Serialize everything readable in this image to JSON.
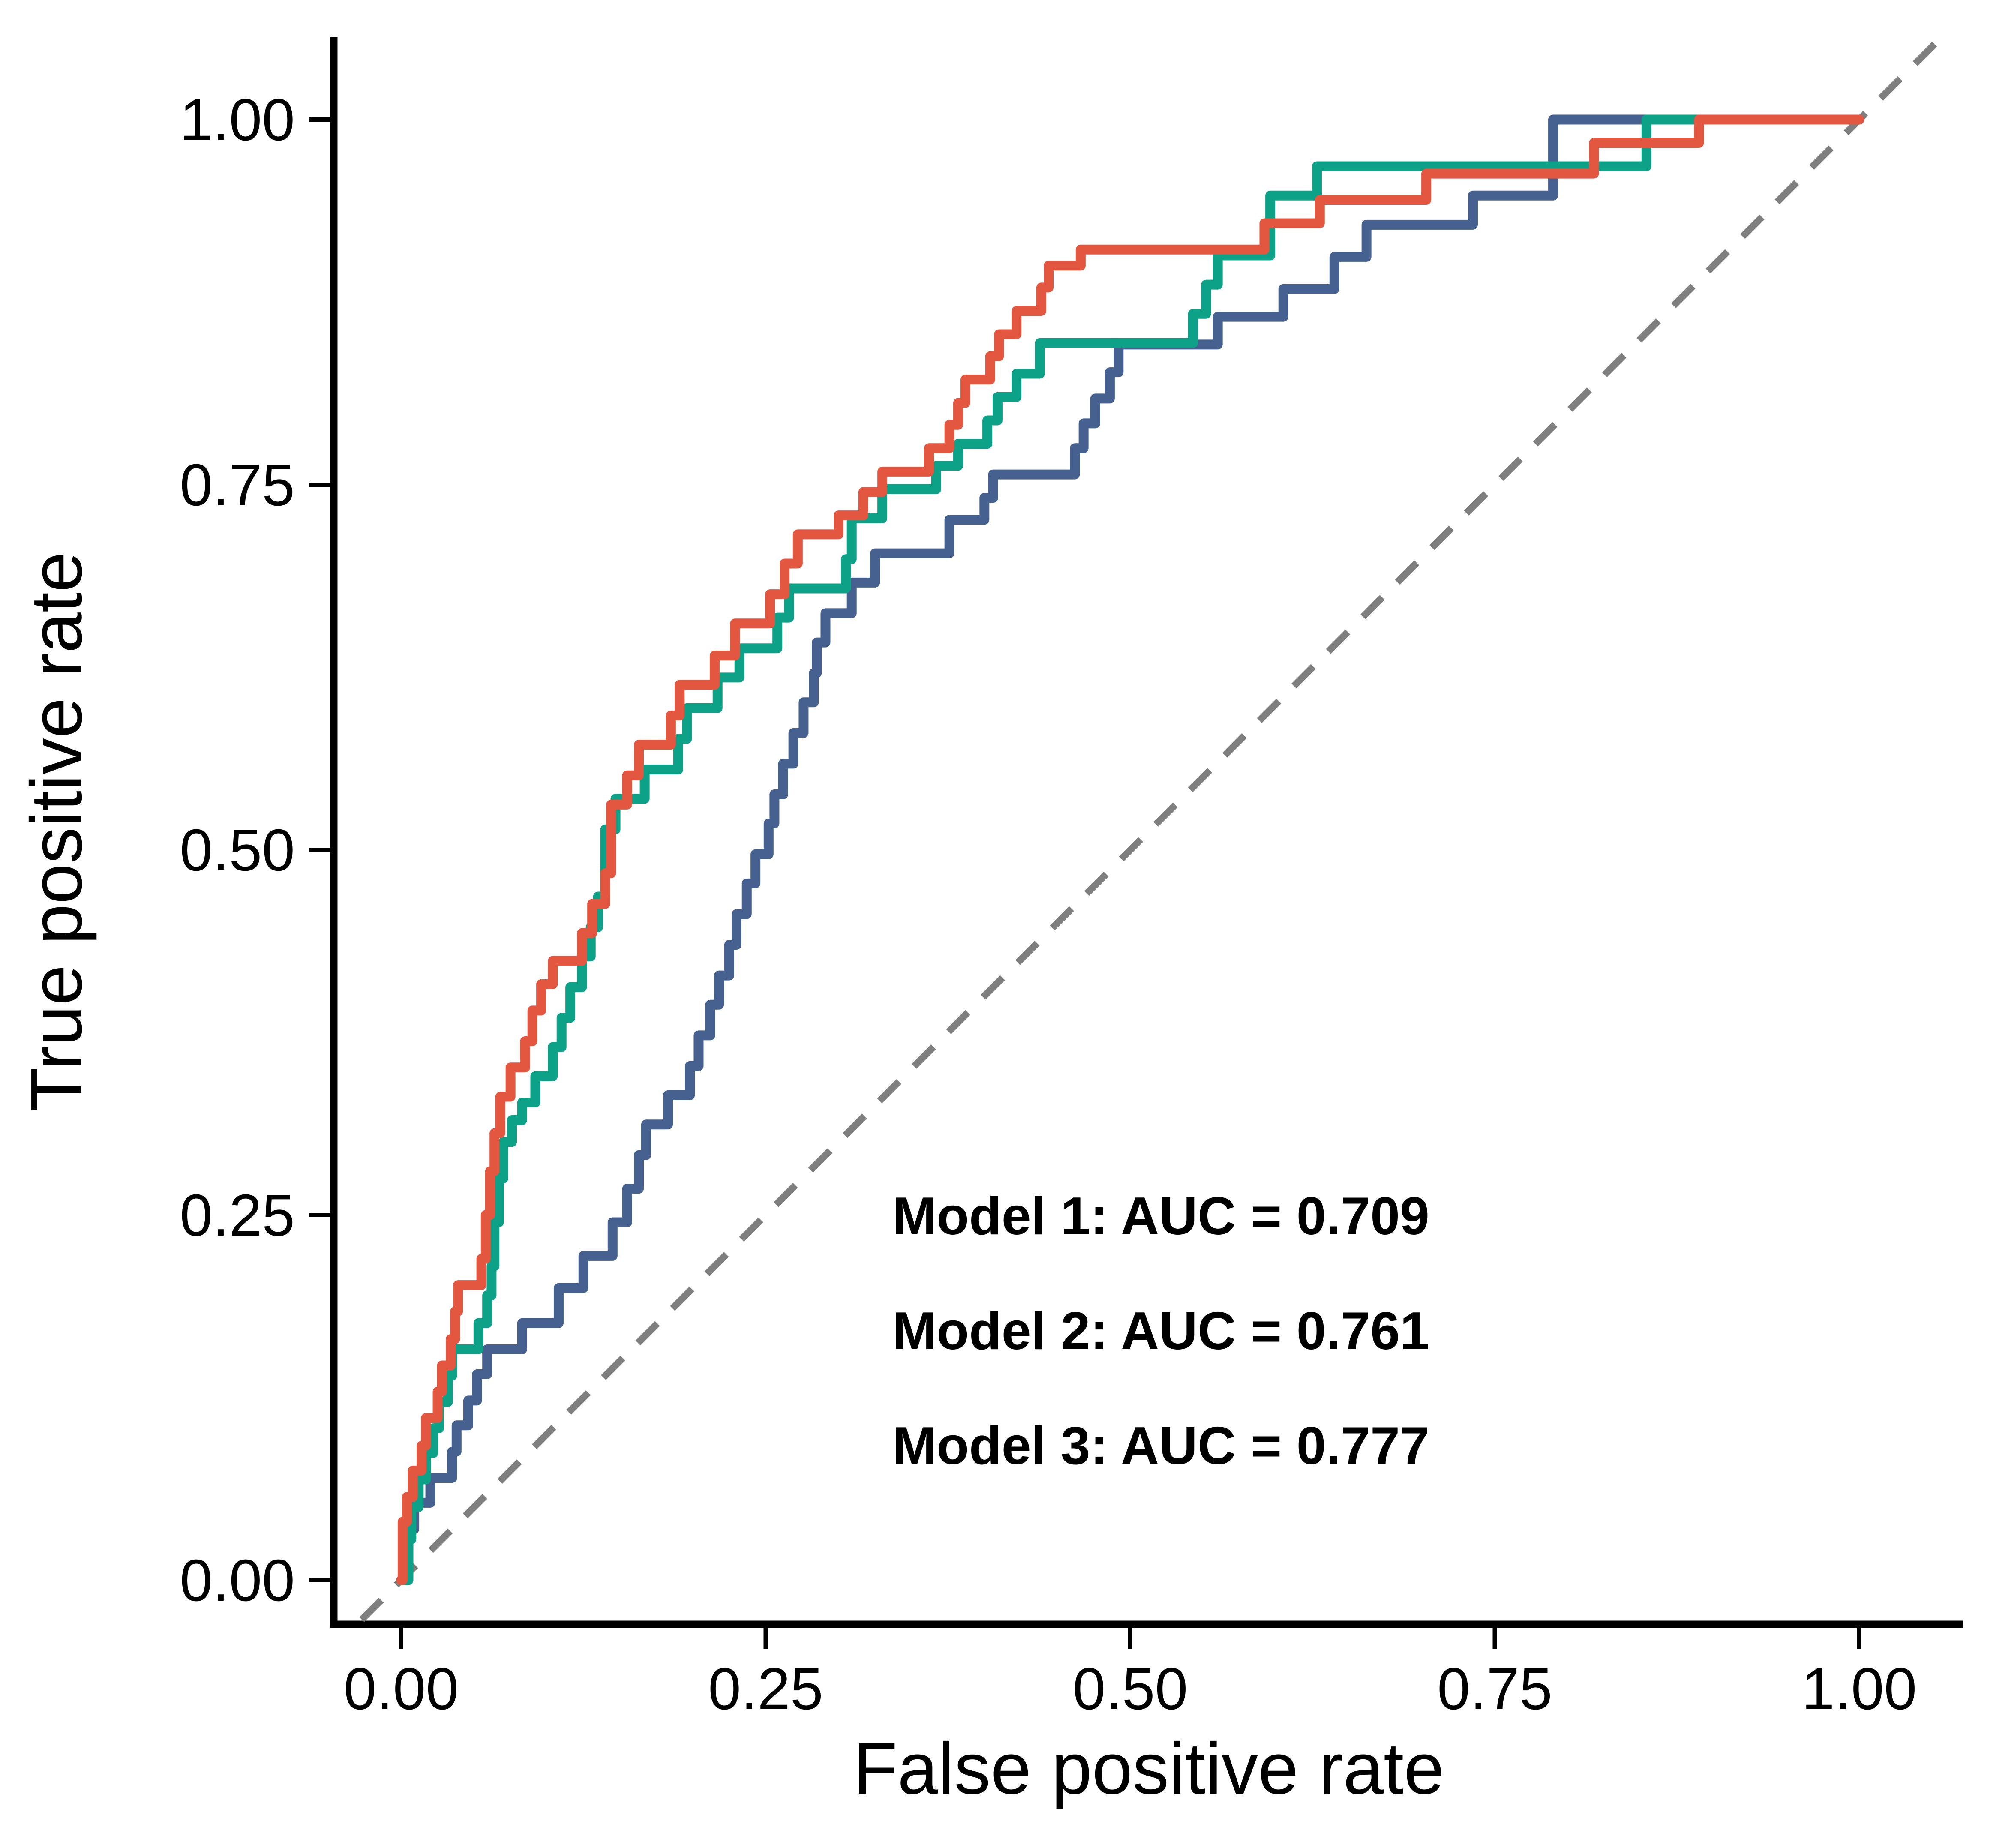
{
  "chart_data": {
    "type": "line",
    "subtype": "roc-step-curves",
    "title": "",
    "xlabel": "False positive rate",
    "ylabel": "True positive rate",
    "xlim": [
      0,
      1
    ],
    "ylim": [
      0,
      1
    ],
    "grid": "off",
    "legend_position": "inside-lower-right-annotations",
    "x_ticks": {
      "values": [
        0,
        0.25,
        0.5,
        0.75,
        1
      ],
      "labels": [
        "0.00",
        "0.25",
        "0.50",
        "0.75",
        "1.00"
      ]
    },
    "y_ticks": {
      "values": [
        0,
        0.25,
        0.5,
        0.75,
        1
      ],
      "labels": [
        "0.00",
        "0.25",
        "0.50",
        "0.75",
        "1.00"
      ]
    },
    "reference_line": {
      "name": "chance-diagonal",
      "from": [
        0,
        0
      ],
      "to": [
        1,
        1
      ],
      "style": "dashed",
      "color": "#7f7f7f"
    },
    "series": [
      {
        "name": "Model 1",
        "auc": 0.709,
        "color": "#46618F",
        "points": [
          [
            0.0,
            0.0
          ],
          [
            0.003,
            0.035
          ],
          [
            0.009,
            0.053
          ],
          [
            0.02,
            0.07
          ],
          [
            0.035,
            0.088
          ],
          [
            0.038,
            0.106
          ],
          [
            0.046,
            0.123
          ],
          [
            0.052,
            0.141
          ],
          [
            0.059,
            0.158
          ],
          [
            0.083,
            0.176
          ],
          [
            0.108,
            0.2
          ],
          [
            0.125,
            0.222
          ],
          [
            0.145,
            0.245
          ],
          [
            0.155,
            0.268
          ],
          [
            0.163,
            0.291
          ],
          [
            0.168,
            0.312
          ],
          [
            0.183,
            0.332
          ],
          [
            0.198,
            0.352
          ],
          [
            0.204,
            0.373
          ],
          [
            0.212,
            0.394
          ],
          [
            0.218,
            0.414
          ],
          [
            0.225,
            0.435
          ],
          [
            0.23,
            0.456
          ],
          [
            0.237,
            0.477
          ],
          [
            0.243,
            0.497
          ],
          [
            0.252,
            0.518
          ],
          [
            0.256,
            0.538
          ],
          [
            0.262,
            0.559
          ],
          [
            0.269,
            0.58
          ],
          [
            0.276,
            0.601
          ],
          [
            0.283,
            0.621
          ],
          [
            0.285,
            0.642
          ],
          [
            0.291,
            0.662
          ],
          [
            0.309,
            0.683
          ],
          [
            0.325,
            0.703
          ],
          [
            0.376,
            0.726
          ],
          [
            0.4,
            0.741
          ],
          [
            0.406,
            0.757
          ],
          [
            0.462,
            0.775
          ],
          [
            0.468,
            0.792
          ],
          [
            0.476,
            0.809
          ],
          [
            0.486,
            0.827
          ],
          [
            0.492,
            0.846
          ],
          [
            0.56,
            0.865
          ],
          [
            0.605,
            0.884
          ],
          [
            0.64,
            0.906
          ],
          [
            0.662,
            0.928
          ],
          [
            0.735,
            0.948
          ],
          [
            0.79,
            1.0
          ],
          [
            1.0,
            1.0
          ]
        ]
      },
      {
        "name": "Model 2",
        "auc": 0.761,
        "color": "#0DA287",
        "points": [
          [
            0.0,
            0.0
          ],
          [
            0.005,
            0.028
          ],
          [
            0.007,
            0.05
          ],
          [
            0.012,
            0.069
          ],
          [
            0.017,
            0.087
          ],
          [
            0.022,
            0.104
          ],
          [
            0.026,
            0.122
          ],
          [
            0.032,
            0.14
          ],
          [
            0.035,
            0.158
          ],
          [
            0.053,
            0.176
          ],
          [
            0.059,
            0.195
          ],
          [
            0.062,
            0.215
          ],
          [
            0.064,
            0.245
          ],
          [
            0.067,
            0.275
          ],
          [
            0.07,
            0.3
          ],
          [
            0.076,
            0.315
          ],
          [
            0.083,
            0.327
          ],
          [
            0.092,
            0.345
          ],
          [
            0.104,
            0.365
          ],
          [
            0.11,
            0.385
          ],
          [
            0.116,
            0.406
          ],
          [
            0.124,
            0.427
          ],
          [
            0.13,
            0.447
          ],
          [
            0.135,
            0.468
          ],
          [
            0.14,
            0.514
          ],
          [
            0.147,
            0.535
          ],
          [
            0.167,
            0.555
          ],
          [
            0.19,
            0.576
          ],
          [
            0.196,
            0.597
          ],
          [
            0.217,
            0.618
          ],
          [
            0.232,
            0.638
          ],
          [
            0.258,
            0.659
          ],
          [
            0.266,
            0.679
          ],
          [
            0.305,
            0.699
          ],
          [
            0.309,
            0.727
          ],
          [
            0.33,
            0.747
          ],
          [
            0.367,
            0.763
          ],
          [
            0.382,
            0.778
          ],
          [
            0.402,
            0.794
          ],
          [
            0.409,
            0.81
          ],
          [
            0.422,
            0.826
          ],
          [
            0.438,
            0.847
          ],
          [
            0.543,
            0.867
          ],
          [
            0.552,
            0.887
          ],
          [
            0.56,
            0.907
          ],
          [
            0.596,
            0.948
          ],
          [
            0.628,
            0.968
          ],
          [
            0.854,
            1.0
          ],
          [
            1.0,
            1.0
          ]
        ]
      },
      {
        "name": "Model 3",
        "auc": 0.777,
        "color": "#E35740",
        "points": [
          [
            0.0,
            0.0
          ],
          [
            0.001,
            0.04
          ],
          [
            0.004,
            0.057
          ],
          [
            0.008,
            0.075
          ],
          [
            0.014,
            0.092
          ],
          [
            0.017,
            0.111
          ],
          [
            0.025,
            0.129
          ],
          [
            0.028,
            0.147
          ],
          [
            0.034,
            0.165
          ],
          [
            0.037,
            0.184
          ],
          [
            0.039,
            0.202
          ],
          [
            0.055,
            0.22
          ],
          [
            0.058,
            0.25
          ],
          [
            0.061,
            0.28
          ],
          [
            0.064,
            0.306
          ],
          [
            0.068,
            0.331
          ],
          [
            0.075,
            0.351
          ],
          [
            0.085,
            0.369
          ],
          [
            0.09,
            0.39
          ],
          [
            0.096,
            0.408
          ],
          [
            0.104,
            0.424
          ],
          [
            0.124,
            0.443
          ],
          [
            0.131,
            0.463
          ],
          [
            0.14,
            0.484
          ],
          [
            0.144,
            0.531
          ],
          [
            0.155,
            0.551
          ],
          [
            0.163,
            0.572
          ],
          [
            0.185,
            0.592
          ],
          [
            0.191,
            0.613
          ],
          [
            0.215,
            0.633
          ],
          [
            0.229,
            0.655
          ],
          [
            0.253,
            0.675
          ],
          [
            0.263,
            0.696
          ],
          [
            0.272,
            0.716
          ],
          [
            0.3,
            0.729
          ],
          [
            0.317,
            0.745
          ],
          [
            0.33,
            0.759
          ],
          [
            0.362,
            0.775
          ],
          [
            0.376,
            0.791
          ],
          [
            0.382,
            0.806
          ],
          [
            0.387,
            0.822
          ],
          [
            0.404,
            0.838
          ],
          [
            0.41,
            0.853
          ],
          [
            0.422,
            0.869
          ],
          [
            0.439,
            0.885
          ],
          [
            0.444,
            0.9
          ],
          [
            0.466,
            0.911
          ],
          [
            0.592,
            0.929
          ],
          [
            0.63,
            0.945
          ],
          [
            0.703,
            0.963
          ],
          [
            0.818,
            0.984
          ],
          [
            0.89,
            1.0
          ],
          [
            1.0,
            1.0
          ]
        ]
      }
    ],
    "annotations": [
      {
        "text": "Model 1: AUC = 0.709",
        "color": "#46618F"
      },
      {
        "text": "Model 2: AUC = 0.761",
        "color": "#0DA287"
      },
      {
        "text": "Model 3: AUC = 0.777",
        "color": "#E35740"
      }
    ]
  }
}
